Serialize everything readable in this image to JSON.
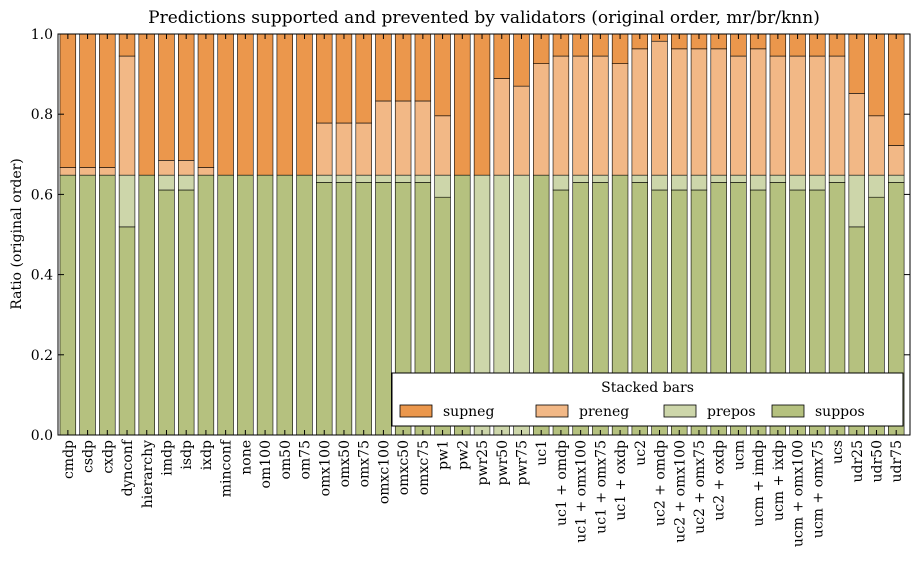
{
  "chart_data": {
    "type": "bar",
    "stacked": true,
    "title": "Predictions supported and prevented by validators (original order, mr/br/knn)",
    "xlabel": "",
    "ylabel": "Ratio (original order)",
    "ylim": [
      0.0,
      1.0
    ],
    "yticks": [
      "0.0",
      "0.2",
      "0.4",
      "0.6",
      "0.8",
      "1.0"
    ],
    "grid": false,
    "legend": {
      "title": "Stacked bars",
      "placement": "lower-right",
      "order": [
        "supneg",
        "preneg",
        "prepos",
        "suppos"
      ]
    },
    "categories": [
      "cmdp",
      "csdp",
      "cxdp",
      "dynconf",
      "hierarchy",
      "imdp",
      "isdp",
      "ixdp",
      "minconf",
      "none",
      "om100",
      "om50",
      "om75",
      "omx100",
      "omx50",
      "omx75",
      "omxc100",
      "omxc50",
      "omxc75",
      "pw1",
      "pw2",
      "pwr25",
      "pwr50",
      "pwr75",
      "uc1",
      "uc1 + omdp",
      "uc1 + omx100",
      "uc1 + omx75",
      "uc1 + oxdp",
      "uc2",
      "uc2 + omdp",
      "uc2 + omx100",
      "uc2 + omx75",
      "uc2 + oxdp",
      "ucm",
      "ucm + imdp",
      "ucm + ixdp",
      "ucm + omx100",
      "ucm + omx75",
      "ucs",
      "udr25",
      "udr50",
      "udr75"
    ],
    "series": [
      {
        "name": "suppos",
        "color": "#b5c17f",
        "values": [
          0.648,
          0.648,
          0.648,
          0.519,
          0.648,
          0.611,
          0.611,
          0.648,
          0.648,
          0.648,
          0.648,
          0.648,
          0.648,
          0.63,
          0.63,
          0.63,
          0.63,
          0.63,
          0.63,
          0.593,
          0.648,
          0.0,
          0.0,
          0.0,
          0.648,
          0.611,
          0.63,
          0.63,
          0.648,
          0.63,
          0.611,
          0.611,
          0.611,
          0.63,
          0.63,
          0.611,
          0.63,
          0.611,
          0.611,
          0.63,
          0.519,
          0.593,
          0.63
        ]
      },
      {
        "name": "prepos",
        "color": "#cdd6aa",
        "values": [
          0.0,
          0.0,
          0.0,
          0.129,
          0.0,
          0.037,
          0.037,
          0.0,
          0.0,
          0.0,
          0.0,
          0.0,
          0.0,
          0.018,
          0.018,
          0.018,
          0.018,
          0.018,
          0.018,
          0.055,
          0.0,
          0.648,
          0.648,
          0.648,
          0.0,
          0.037,
          0.018,
          0.018,
          0.0,
          0.018,
          0.037,
          0.037,
          0.037,
          0.018,
          0.018,
          0.037,
          0.018,
          0.037,
          0.037,
          0.018,
          0.129,
          0.055,
          0.018
        ]
      },
      {
        "name": "preneg",
        "color": "#f2b886",
        "values": [
          0.019,
          0.019,
          0.019,
          0.297,
          0.0,
          0.037,
          0.037,
          0.019,
          0.0,
          0.0,
          0.0,
          0.0,
          0.0,
          0.13,
          0.13,
          0.13,
          0.185,
          0.185,
          0.185,
          0.148,
          0.0,
          0.0,
          0.241,
          0.222,
          0.278,
          0.297,
          0.297,
          0.297,
          0.278,
          0.315,
          0.334,
          0.315,
          0.315,
          0.315,
          0.297,
          0.315,
          0.297,
          0.297,
          0.297,
          0.297,
          0.204,
          0.148,
          0.074
        ]
      },
      {
        "name": "supneg",
        "color": "#eb974c",
        "values": [
          0.333,
          0.333,
          0.333,
          0.055,
          0.352,
          0.315,
          0.315,
          0.333,
          0.352,
          0.352,
          0.352,
          0.352,
          0.352,
          0.222,
          0.222,
          0.222,
          0.167,
          0.167,
          0.167,
          0.204,
          0.352,
          0.352,
          0.111,
          0.13,
          0.074,
          0.055,
          0.055,
          0.055,
          0.074,
          0.037,
          0.018,
          0.037,
          0.037,
          0.037,
          0.055,
          0.037,
          0.055,
          0.055,
          0.055,
          0.055,
          0.148,
          0.204,
          0.278
        ]
      }
    ]
  }
}
